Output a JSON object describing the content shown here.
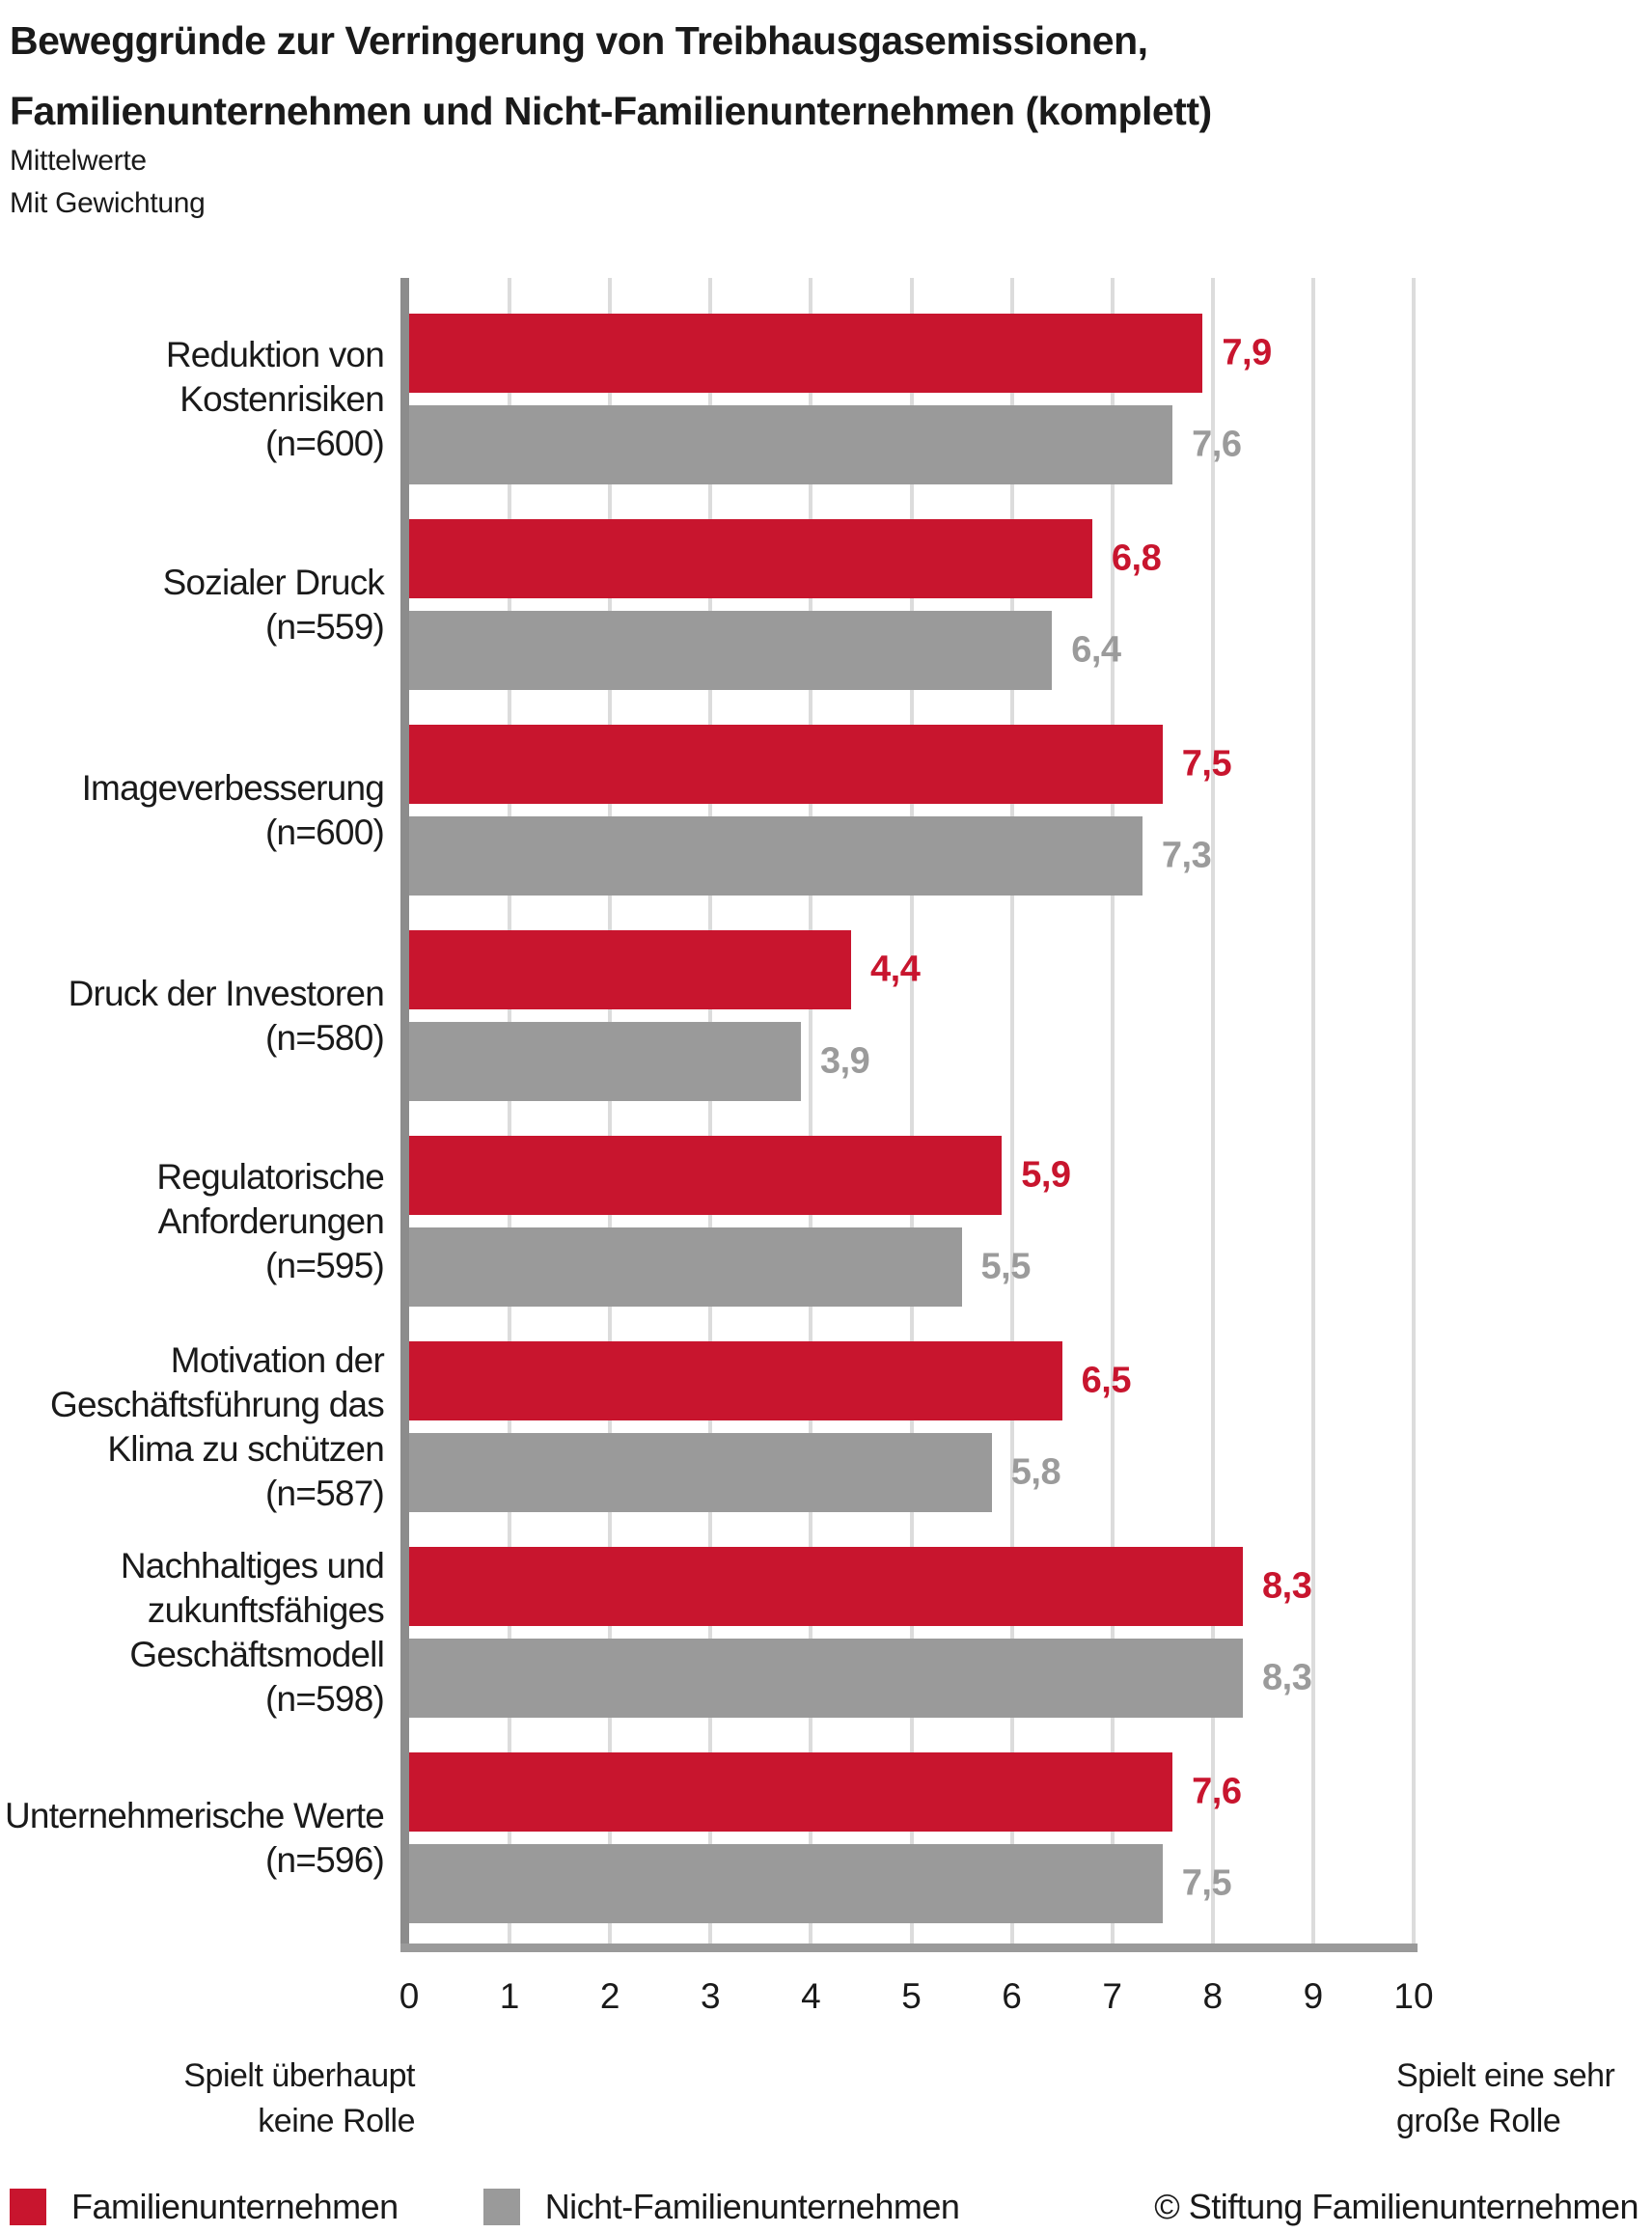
{
  "header": {
    "title": "Beweggründe zur Verringerung von Treibhausgasemissionen, Familienunternehmen und Nicht-Familienunternehmen (komplett)",
    "title_lines": [
      "Beweggründe zur Verringerung von Treibhausgasemissionen,",
      "Familienunternehmen und Nicht-Familienunternehmen (komplett)"
    ],
    "subtitle_lines": [
      "Mittelwerte",
      "Mit Gewichtung"
    ]
  },
  "colors": {
    "family_red": "#C8152E",
    "non_family_gray": "#9A9A9A",
    "gridline": "#DCDCDC",
    "axis": "#8C8C8C",
    "text": "#1A1A1A",
    "value_gray": "#9B9B9B"
  },
  "chart_data": {
    "type": "bar",
    "orientation": "horizontal",
    "xlim": [
      0,
      10
    ],
    "x_ticks": [
      "0",
      "1",
      "2",
      "3",
      "4",
      "5",
      "6",
      "7",
      "8",
      "9",
      "10"
    ],
    "grid": true,
    "legend_position": "bottom",
    "categories": [
      "Reduktion von Kostenrisiken (n=600)",
      "Sozialer Druck (n=559)",
      "Imageverbesserung (n=600)",
      "Druck der Investoren (n=580)",
      "Regulatorische Anforderungen (n=595)",
      "Motivation der Geschäftsführung das Klima zu schützen (n=587)",
      "Nachhaltiges und zukunftsfähiges Geschäftsmodell (n=598)",
      "Unternehmerische Werte (n=596)"
    ],
    "category_label_lines": [
      [
        "Reduktion von",
        "Kostenrisiken",
        "(n=600)"
      ],
      [
        "Sozialer Druck",
        "(n=559)"
      ],
      [
        "Imageverbesserung",
        "(n=600)"
      ],
      [
        "Druck der Investoren",
        "(n=580)"
      ],
      [
        "Regulatorische",
        "Anforderungen",
        "(n=595)"
      ],
      [
        "Motivation der",
        "Geschäftsführung das",
        "Klima zu schützen",
        "(n=587)"
      ],
      [
        "Nachhaltiges und",
        "zukunftsfähiges",
        "Geschäftsmodell",
        "(n=598)"
      ],
      [
        "Unternehmerische Werte",
        "(n=596)"
      ]
    ],
    "series": [
      {
        "name": "Familienunternehmen",
        "color": "#C8152E",
        "label_color": "#C8152E",
        "values": [
          7.9,
          6.8,
          7.5,
          4.4,
          5.9,
          6.5,
          8.3,
          7.6
        ],
        "value_labels": [
          "7,9",
          "6,8",
          "7,5",
          "4,4",
          "5,9",
          "6,5",
          "8,3",
          "7,6"
        ]
      },
      {
        "name": "Nicht-Familienunternehmen",
        "color": "#9A9A9A",
        "label_color": "#9B9B9B",
        "values": [
          7.6,
          6.4,
          7.3,
          3.9,
          5.5,
          5.8,
          8.3,
          7.5
        ],
        "value_labels": [
          "7,6",
          "6,4",
          "7,3",
          "3,9",
          "5,5",
          "5,8",
          "8,3",
          "7,5"
        ]
      }
    ],
    "axis_endpoint_labels": {
      "left_lines": [
        "Spielt überhaupt",
        "keine Rolle"
      ],
      "right_lines": [
        "Spielt eine sehr",
        "große Rolle"
      ]
    }
  },
  "legend": {
    "items": [
      {
        "label": "Familienunternehmen",
        "color": "#C8152E"
      },
      {
        "label": "Nicht-Familienunternehmen",
        "color": "#9A9A9A"
      }
    ],
    "copyright": "© Stiftung Familienunternehmen"
  }
}
